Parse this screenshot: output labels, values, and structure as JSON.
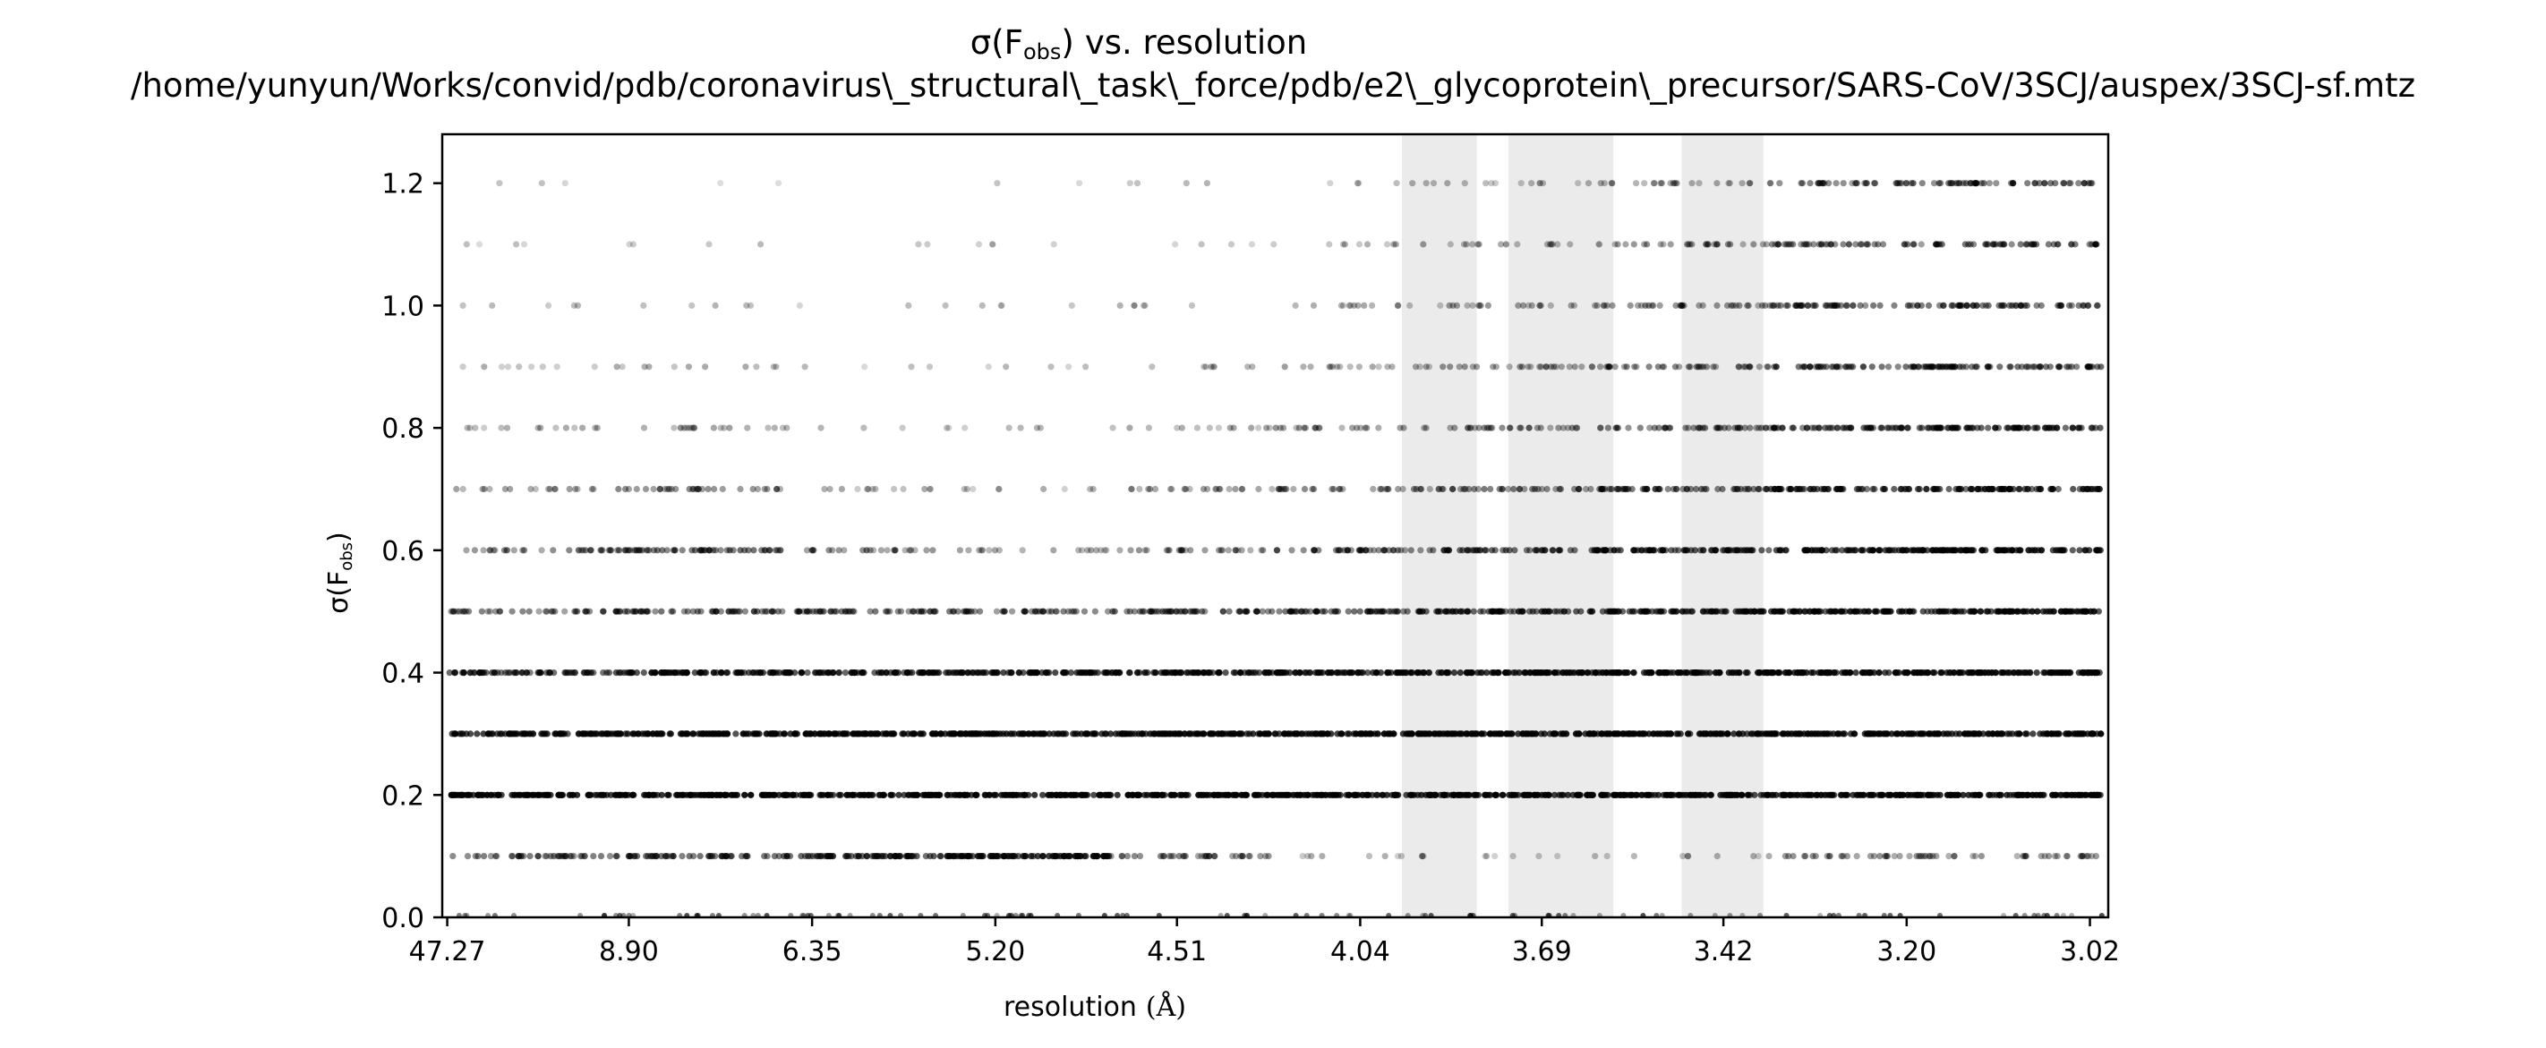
{
  "chart_data": {
    "type": "scatter",
    "title_main": "vs. resolution",
    "title_sigma": "σ(F",
    "title_sub": "obs",
    "title_close": ")",
    "subtitle": "/home/yunyun/Works/convid/pdb/coronavirus\\_structural\\_task\\_force/pdb/e2\\_glycoprotein\\_precursor/SARS-CoV/3SCJ/auspex/3SCJ-sf.mtz",
    "xlabel": "resolution",
    "xlabel_unit": "(Å)",
    "ylabel": "σ(F",
    "ylabel_sub": "obs",
    "ylabel_close": ")",
    "x_tick_labels": [
      "47.27",
      "8.90",
      "6.35",
      "5.20",
      "4.51",
      "4.04",
      "3.69",
      "3.42",
      "3.20",
      "3.02"
    ],
    "x_tick_positions": [
      0.003,
      0.112,
      0.222,
      0.332,
      0.441,
      0.551,
      0.66,
      0.769,
      0.879,
      0.989
    ],
    "ylim": [
      0.0,
      1.28
    ],
    "y_ticks": [
      0.0,
      0.2,
      0.4,
      0.6,
      0.8,
      1.0,
      1.2
    ],
    "y_tick_labels": [
      "0.0",
      "0.2",
      "0.4",
      "0.6",
      "0.8",
      "1.0",
      "1.2"
    ],
    "point_color": "#000000",
    "shaded_color": "#ebebeb",
    "shaded_regions": [
      {
        "from_label": "3.93",
        "to_label": "3.79",
        "range": [
          0.576,
          0.621
        ]
      },
      {
        "from_label": "3.73",
        "to_label": "3.58",
        "range": [
          0.64,
          0.703
        ]
      },
      {
        "from_label": "3.49",
        "to_label": "3.39",
        "range": [
          0.744,
          0.793
        ]
      }
    ],
    "series_levels": [
      {
        "sigma": 0.1,
        "density": [
          0.45,
          0.55,
          0.7,
          0.9,
          0.4,
          0.12,
          0.08,
          0.1,
          0.35,
          0.3
        ]
      },
      {
        "sigma": 0.2,
        "density": [
          1.0,
          1.0,
          1.0,
          1.0,
          1.0,
          1.0,
          1.0,
          1.0,
          1.0,
          1.0
        ]
      },
      {
        "sigma": 0.3,
        "density": [
          0.9,
          1.0,
          1.0,
          1.0,
          1.0,
          1.0,
          1.0,
          1.0,
          1.0,
          1.0
        ]
      },
      {
        "sigma": 0.4,
        "density": [
          0.7,
          0.85,
          0.85,
          0.85,
          0.85,
          0.9,
          0.95,
          1.0,
          1.0,
          1.0
        ]
      },
      {
        "sigma": 0.5,
        "density": [
          0.4,
          0.55,
          0.5,
          0.45,
          0.55,
          0.6,
          0.7,
          0.8,
          0.85,
          0.9
        ]
      },
      {
        "sigma": 0.6,
        "density": [
          0.35,
          0.55,
          0.3,
          0.2,
          0.3,
          0.45,
          0.6,
          0.7,
          0.8,
          0.85
        ]
      },
      {
        "sigma": 0.7,
        "density": [
          0.2,
          0.35,
          0.15,
          0.1,
          0.25,
          0.35,
          0.45,
          0.55,
          0.7,
          0.75
        ]
      },
      {
        "sigma": 0.8,
        "density": [
          0.15,
          0.2,
          0.06,
          0.08,
          0.15,
          0.25,
          0.35,
          0.45,
          0.6,
          0.7
        ]
      },
      {
        "sigma": 0.9,
        "density": [
          0.1,
          0.12,
          0.04,
          0.05,
          0.1,
          0.2,
          0.3,
          0.4,
          0.55,
          0.6
        ]
      },
      {
        "sigma": 1.0,
        "density": [
          0.06,
          0.05,
          0.02,
          0.05,
          0.07,
          0.15,
          0.25,
          0.35,
          0.5,
          0.55
        ]
      },
      {
        "sigma": 1.1,
        "density": [
          0.04,
          0.04,
          0.02,
          0.04,
          0.06,
          0.12,
          0.2,
          0.3,
          0.45,
          0.5
        ]
      },
      {
        "sigma": 1.2,
        "density": [
          0.03,
          0.02,
          0.0,
          0.02,
          0.04,
          0.08,
          0.15,
          0.25,
          0.4,
          0.5
        ]
      }
    ],
    "grid": false,
    "legend": "none"
  }
}
